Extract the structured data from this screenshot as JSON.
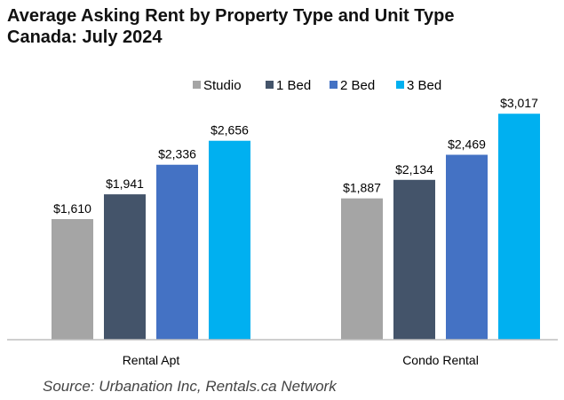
{
  "chart_data": {
    "type": "bar",
    "title_line1": "Average Asking Rent by Property Type and Unit Type",
    "title_line2": "Canada: July 2024",
    "categories": [
      "Rental Apt",
      "Condo Rental"
    ],
    "series": [
      {
        "name": "Studio",
        "color": "#a5a5a5",
        "values": [
          1610,
          1887
        ],
        "labels": [
          "$1,610",
          "$1,887"
        ]
      },
      {
        "name": "1 Bed",
        "color": "#44546a",
        "values": [
          1941,
          2134
        ],
        "labels": [
          "$1,941",
          "$2,134"
        ]
      },
      {
        "name": "2 Bed",
        "color": "#4472c4",
        "values": [
          2336,
          2469
        ],
        "labels": [
          "$2,336",
          "$2,469"
        ]
      },
      {
        "name": "3 Bed",
        "color": "#00b0f0",
        "values": [
          2656,
          3017
        ],
        "labels": [
          "$2,656",
          "$3,017"
        ]
      }
    ],
    "ylim": [
      0,
      3150
    ],
    "legend_position": "top",
    "grid": false
  },
  "source": "Source: Urbanation Inc, Rentals.ca Network"
}
